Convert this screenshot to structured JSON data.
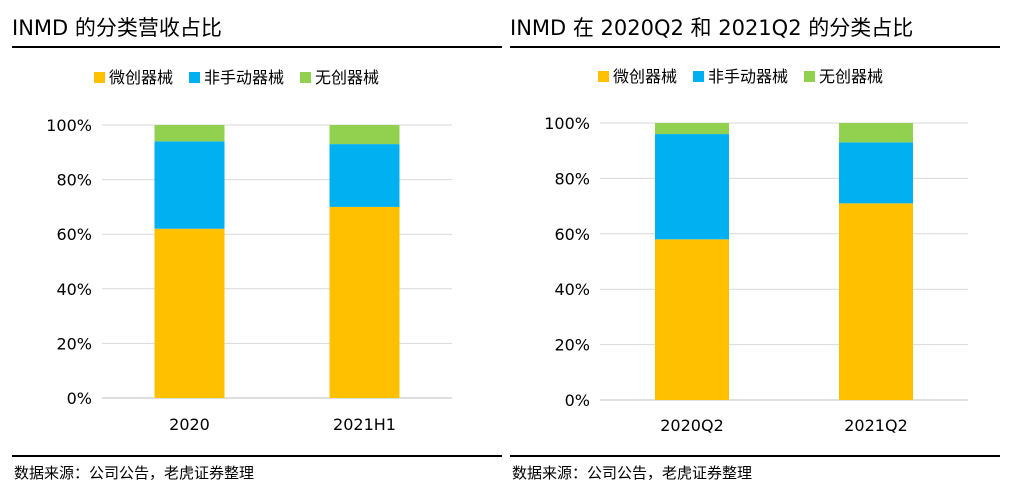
{
  "panels": [
    {
      "title": "INMD  的分类营收占比",
      "source": "数据来源：公司公告，老虎证券整理"
    },
    {
      "title": "INMD 在 2020Q2 和 2021Q2 的分类占比",
      "source": "数据来源：公司公告，老虎证券整理"
    }
  ],
  "chart_data": [
    {
      "type": "bar",
      "stacked": true,
      "categories": [
        "2020",
        "2021H1"
      ],
      "series": [
        {
          "name": "微创器械",
          "color": "#FFC000",
          "values": [
            62,
            70
          ]
        },
        {
          "name": "非手动器械",
          "color": "#00B0F0",
          "values": [
            32,
            23
          ]
        },
        {
          "name": "无创器械",
          "color": "#92D050",
          "values": [
            6,
            7
          ]
        }
      ],
      "yticks": [
        "0%",
        "20%",
        "40%",
        "60%",
        "80%",
        "100%"
      ],
      "ylim": [
        0,
        100
      ],
      "grid": true,
      "legend": "top"
    },
    {
      "type": "bar",
      "stacked": true,
      "categories": [
        "2020Q2",
        "2021Q2"
      ],
      "series": [
        {
          "name": "微创器械",
          "color": "#FFC000",
          "values": [
            58,
            71
          ]
        },
        {
          "name": "非手动器械",
          "color": "#00B0F0",
          "values": [
            38,
            22
          ]
        },
        {
          "name": "无创器械",
          "color": "#92D050",
          "values": [
            4,
            7
          ]
        }
      ],
      "yticks": [
        "0%",
        "20%",
        "40%",
        "60%",
        "80%",
        "100%"
      ],
      "ylim": [
        0,
        100
      ],
      "grid": true,
      "legend": "top"
    }
  ]
}
